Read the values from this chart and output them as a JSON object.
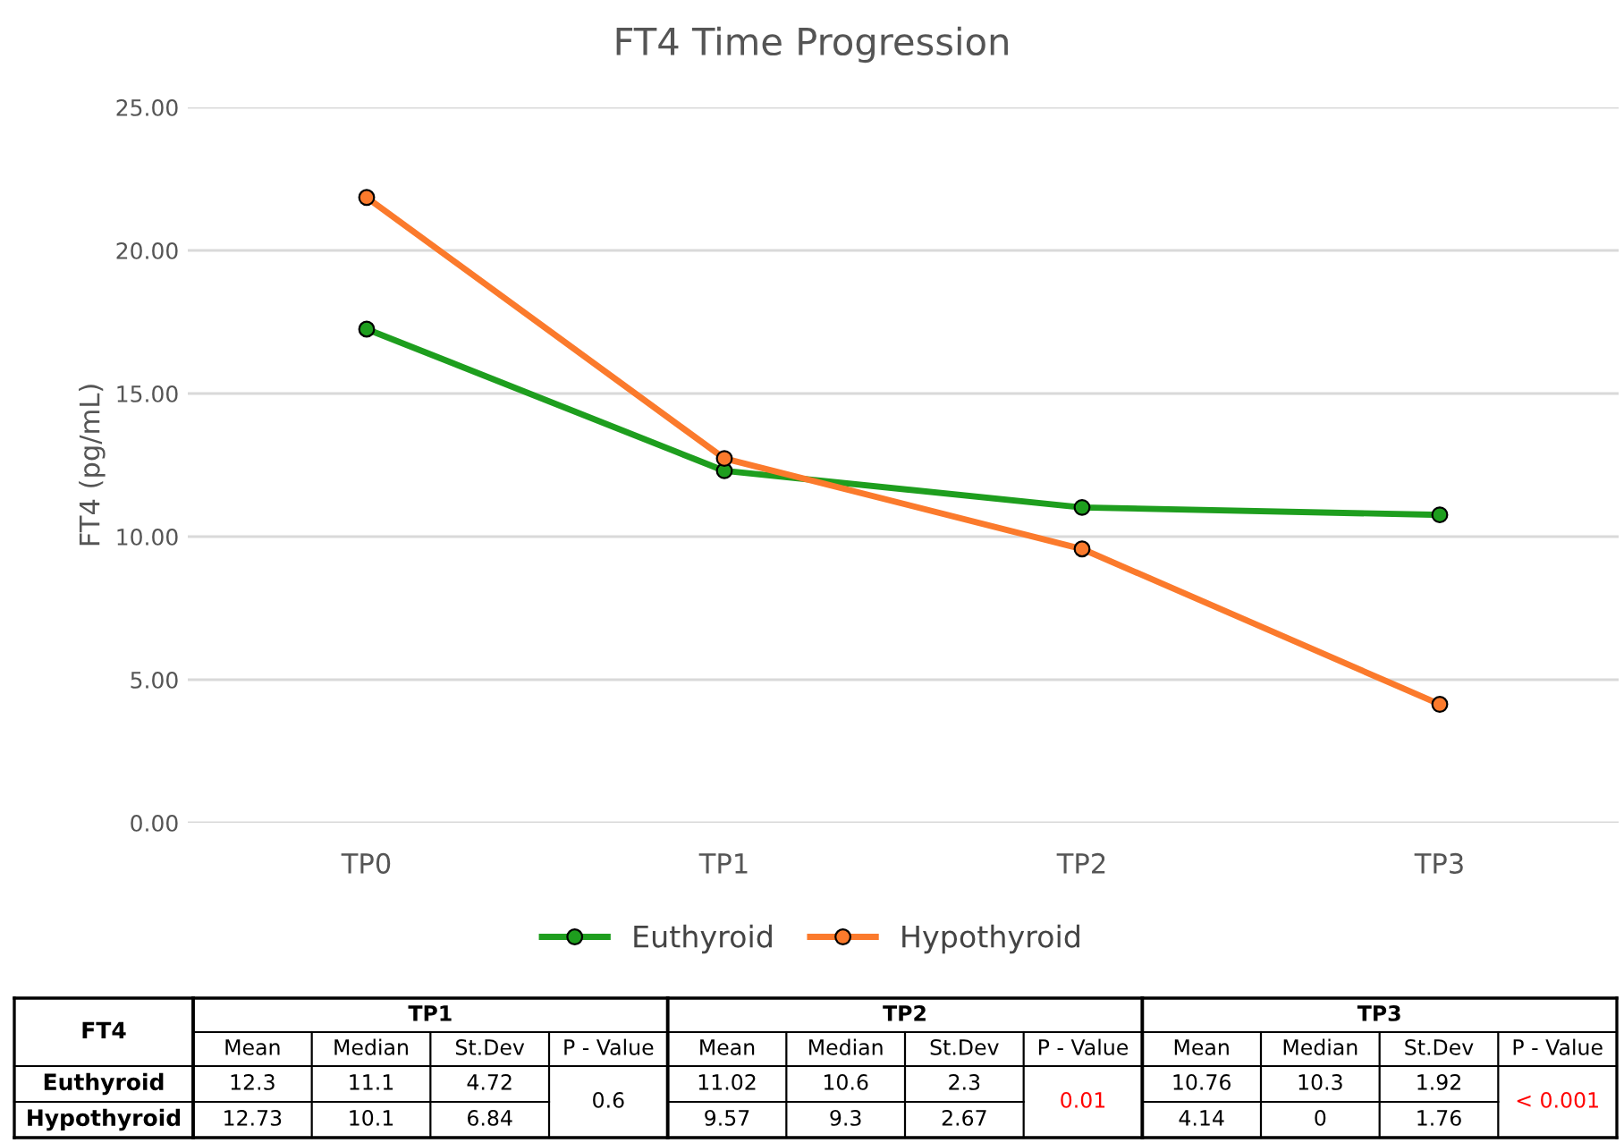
{
  "chart_data": {
    "type": "line",
    "title": "FT4 Time Progression",
    "ylabel": "FT4 (pg/mL)",
    "categories": [
      "TP0",
      "TP1",
      "TP2",
      "TP3"
    ],
    "series": [
      {
        "name": "Euthyroid",
        "color": "#1e9e1e",
        "values": [
          17.25,
          12.3,
          11.02,
          10.76
        ]
      },
      {
        "name": "Hypothyroid",
        "color": "#fb7a2c",
        "values": [
          21.85,
          12.73,
          9.57,
          4.14
        ]
      }
    ],
    "ylim": [
      0,
      25
    ],
    "yticks": [
      {
        "value": 0,
        "label": "0.00"
      },
      {
        "value": 5,
        "label": "5.00"
      },
      {
        "value": 10,
        "label": "10.00"
      },
      {
        "value": 15,
        "label": "15.00"
      },
      {
        "value": 20,
        "label": "20.00"
      },
      {
        "value": 25,
        "label": "25.00"
      }
    ],
    "grid": "y",
    "legend": "bottom",
    "marker": "circle",
    "line_style": "solid",
    "annotations": [
      "FT4",
      "Mean",
      "Median",
      "St.Dev",
      "P - Value",
      "12.3",
      "12.73",
      "11.1",
      "10.1",
      "4.72",
      "6.84",
      "0.6",
      "11.02",
      "9.57",
      "10.6",
      "9.3",
      "2.3",
      "2.67",
      "0.01",
      "10.76",
      "4.14",
      "10.3",
      "0",
      "1.92",
      "1.76",
      "< 0.001"
    ]
  }
}
